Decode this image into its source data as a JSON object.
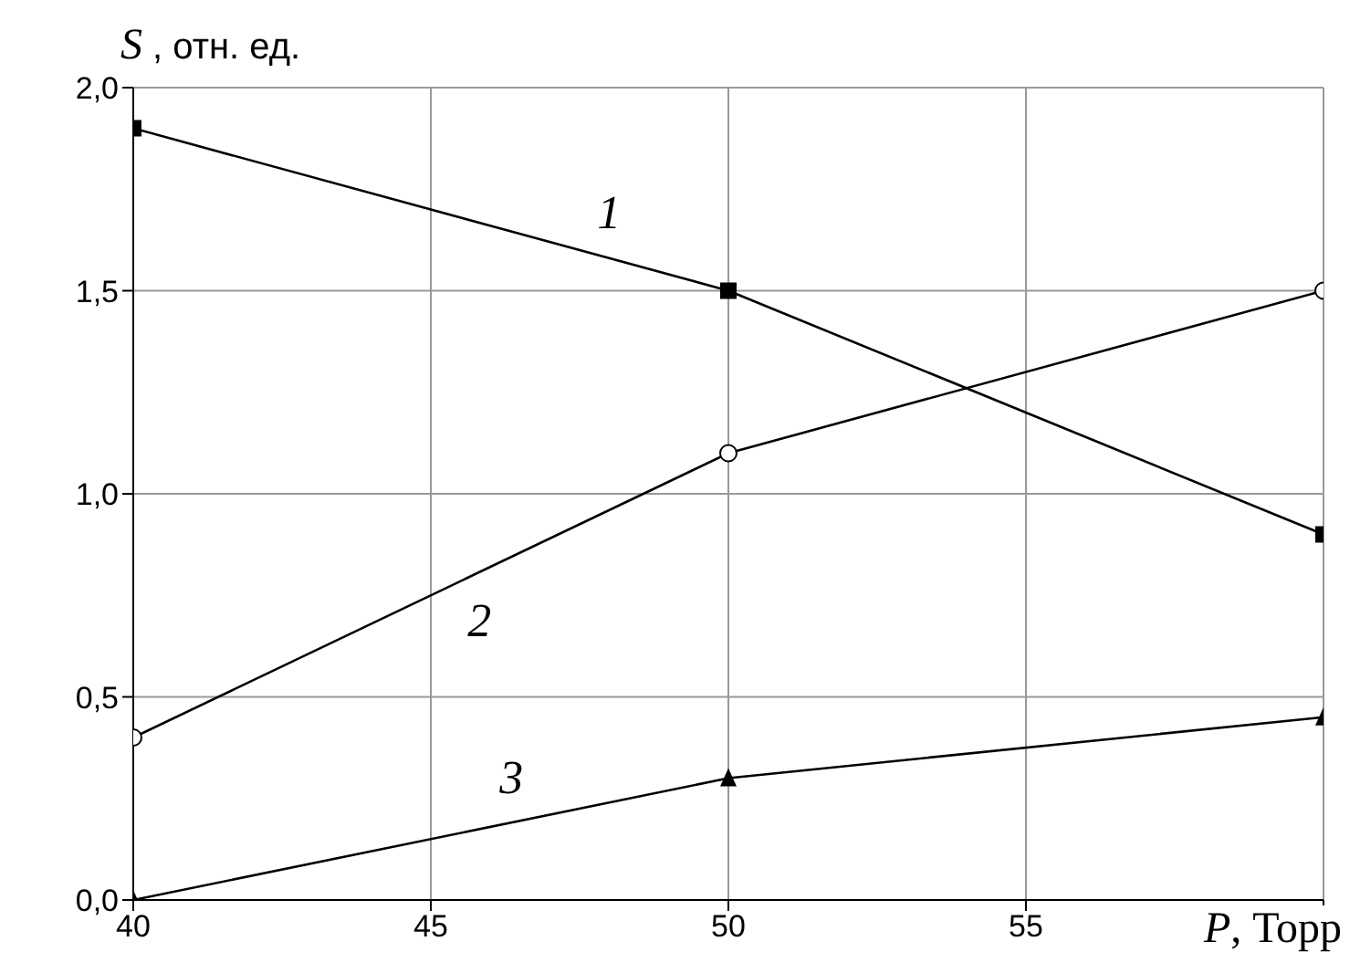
{
  "chart_data": {
    "type": "line",
    "xlabel": "P, Торр",
    "ylabel": "S , отн. ед.",
    "x": [
      40,
      50,
      60
    ],
    "series": [
      {
        "name": "1",
        "color": "#000000",
        "marker": "square",
        "values": [
          1.9,
          1.5,
          0.9
        ]
      },
      {
        "name": "2",
        "color": "#000000",
        "marker": "circle",
        "values": [
          0.4,
          1.1,
          1.5
        ]
      },
      {
        "name": "3",
        "color": "#000000",
        "marker": "triangle",
        "values": [
          0.0,
          0.3,
          0.45
        ]
      }
    ],
    "xlim": [
      40,
      60
    ],
    "xticks": [
      40,
      45,
      50,
      55,
      {
        "value": 60,
        "label": null
      }
    ],
    "ylim": [
      0,
      2
    ],
    "yticks": [
      {
        "value": 0,
        "label": "0,0"
      },
      {
        "value": 0.5,
        "label": "0,5"
      },
      {
        "value": 1,
        "label": "1,0"
      },
      {
        "value": 1.5,
        "label": "1,5"
      },
      {
        "value": 2,
        "label": "2,0"
      }
    ],
    "grid": true,
    "legend": false,
    "line_style": "solid"
  }
}
